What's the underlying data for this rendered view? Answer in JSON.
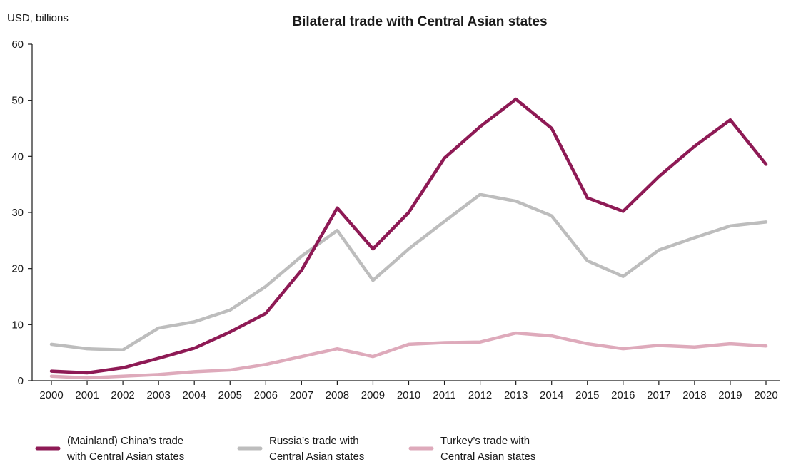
{
  "chart_data": {
    "type": "line",
    "title": "Bilateral trade with Central Asian states",
    "ylabel": "USD, billions",
    "xlabel": "",
    "x": [
      "2000",
      "2001",
      "2002",
      "2003",
      "2004",
      "2005",
      "2006",
      "2007",
      "2008",
      "2009",
      "2010",
      "2011",
      "2012",
      "2013",
      "2014",
      "2015",
      "2016",
      "2017",
      "2018",
      "2019",
      "2020"
    ],
    "ylim": [
      0,
      60
    ],
    "yticks": [
      "0",
      "10",
      "20",
      "30",
      "40",
      "50",
      "60"
    ],
    "grid": false,
    "legend_position": "bottom",
    "series": [
      {
        "name_lines": [
          "(Mainland) China’s trade",
          "with Central Asian states"
        ],
        "color": "#8e1a55",
        "values": [
          1.7,
          1.4,
          2.3,
          4.0,
          5.8,
          8.7,
          12.0,
          19.7,
          30.8,
          23.5,
          30.0,
          39.7,
          45.3,
          50.2,
          45.0,
          32.6,
          30.2,
          36.4,
          41.8,
          46.5,
          38.6
        ]
      },
      {
        "name_lines": [
          "Russia’s trade with",
          "Central Asian states"
        ],
        "color": "#bdbdbd",
        "values": [
          6.5,
          5.7,
          5.5,
          9.4,
          10.5,
          12.6,
          16.8,
          22.2,
          26.8,
          17.9,
          23.5,
          28.4,
          33.2,
          32.0,
          29.4,
          21.4,
          18.6,
          23.3,
          25.5,
          27.6,
          28.3
        ]
      },
      {
        "name_lines": [
          "Turkey’s trade with",
          "Central Asian states"
        ],
        "color": "#deaabb",
        "values": [
          0.8,
          0.5,
          0.8,
          1.1,
          1.6,
          1.9,
          2.9,
          4.3,
          5.7,
          4.3,
          6.5,
          6.8,
          6.9,
          8.5,
          8.0,
          6.6,
          5.7,
          6.3,
          6.0,
          6.6,
          6.2
        ]
      }
    ]
  }
}
